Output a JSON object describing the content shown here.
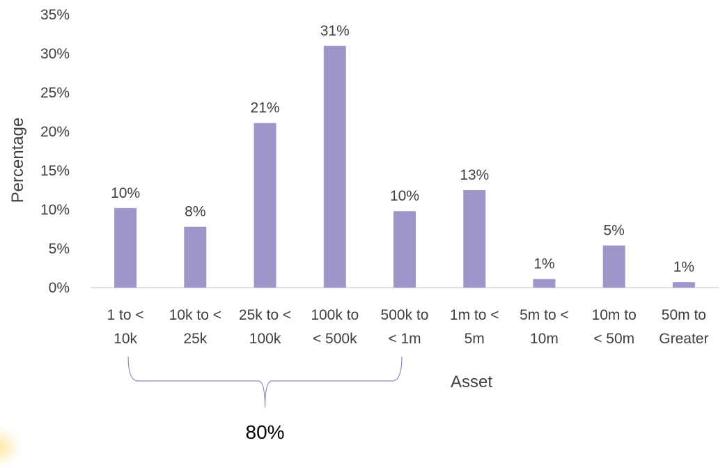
{
  "chart_data": {
    "type": "bar",
    "categories": [
      [
        "1 to <",
        "10k"
      ],
      [
        "10k to <",
        "25k"
      ],
      [
        "25k to <",
        "100k"
      ],
      [
        "100k to",
        "< 500k"
      ],
      [
        "500k to",
        "< 1m"
      ],
      [
        "1m to <",
        "5m"
      ],
      [
        "5m to <",
        "10m"
      ],
      [
        "10m to",
        "< 50m"
      ],
      [
        "50m to",
        "Greater"
      ]
    ],
    "values": [
      10.2,
      7.8,
      21.1,
      31.0,
      9.8,
      12.5,
      1.1,
      5.4,
      0.7
    ],
    "data_labels": [
      "10%",
      "8%",
      "21%",
      "31%",
      "10%",
      "13%",
      "1%",
      "5%",
      "1%"
    ],
    "ylim": [
      0,
      35
    ],
    "yticks": [
      "0%",
      "5%",
      "10%",
      "15%",
      "20%",
      "25%",
      "30%",
      "35%"
    ],
    "ylabel": "Percentage",
    "xlabel": "Asset",
    "grid": false,
    "bar_color": "#9e96c9",
    "annotation": {
      "text": "80%",
      "spans_categories": [
        0,
        4
      ]
    }
  }
}
